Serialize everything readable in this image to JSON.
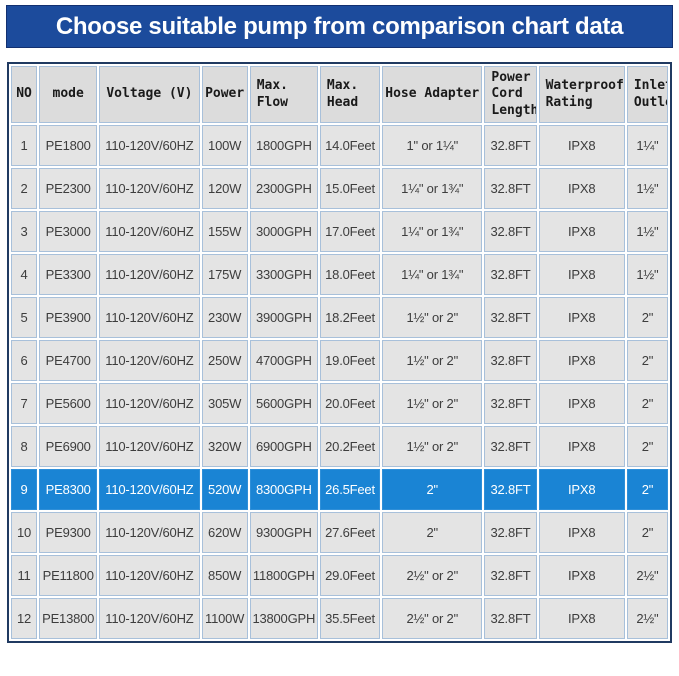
{
  "banner": {
    "bg_color": "#1c4b9c",
    "text_color": "#ffffff"
  },
  "colors": {
    "highlight_bg": "#1a84d4",
    "header_cell_bg": "#dcdcdc",
    "data_cell_bg": "#e4e4e4",
    "grid_line": "#a8c0da",
    "outer_border": "#203a61"
  },
  "chart_data": {
    "type": "table",
    "title": "Choose suitable pump from comparison chart data",
    "columns": [
      "NO",
      "mode",
      "Voltage (V)",
      "Power",
      "Max.\nFlow",
      "Max.\nHead",
      "Hose Adapter",
      "Power\nCord\nLength",
      "Waterproof\nRating",
      "Inlet/\nOutlet"
    ],
    "column_keys": [
      "no",
      "mode",
      "voltage",
      "power",
      "max-flow",
      "max-head",
      "hose-adapter",
      "power-cord-length",
      "waterproof-rating",
      "inlet-outlet"
    ],
    "highlighted_row_no": "9",
    "rows": [
      [
        "1",
        "PE1800",
        "110-120V/60HZ",
        "100W",
        "1800GPH",
        "14.0Feet",
        "1\" or 1¼\"",
        "32.8FT",
        "IPX8",
        "1¼\""
      ],
      [
        "2",
        "PE2300",
        "110-120V/60HZ",
        "120W",
        "2300GPH",
        "15.0Feet",
        "1¼\" or 1¾\"",
        "32.8FT",
        "IPX8",
        "1½\""
      ],
      [
        "3",
        "PE3000",
        "110-120V/60HZ",
        "155W",
        "3000GPH",
        "17.0Feet",
        "1¼\" or 1¾\"",
        "32.8FT",
        "IPX8",
        "1½\""
      ],
      [
        "4",
        "PE3300",
        "110-120V/60HZ",
        "175W",
        "3300GPH",
        "18.0Feet",
        "1¼\" or 1¾\"",
        "32.8FT",
        "IPX8",
        "1½\""
      ],
      [
        "5",
        "PE3900",
        "110-120V/60HZ",
        "230W",
        "3900GPH",
        "18.2Feet",
        "1½\" or 2\"",
        "32.8FT",
        "IPX8",
        "2\""
      ],
      [
        "6",
        "PE4700",
        "110-120V/60HZ",
        "250W",
        "4700GPH",
        "19.0Feet",
        "1½\" or 2\"",
        "32.8FT",
        "IPX8",
        "2\""
      ],
      [
        "7",
        "PE5600",
        "110-120V/60HZ",
        "305W",
        "5600GPH",
        "20.0Feet",
        "1½\" or 2\"",
        "32.8FT",
        "IPX8",
        "2\""
      ],
      [
        "8",
        "PE6900",
        "110-120V/60HZ",
        "320W",
        "6900GPH",
        "20.2Feet",
        "1½\" or 2\"",
        "32.8FT",
        "IPX8",
        "2\""
      ],
      [
        "9",
        "PE8300",
        "110-120V/60HZ",
        "520W",
        "8300GPH",
        "26.5Feet",
        "2\"",
        "32.8FT",
        "IPX8",
        "2\""
      ],
      [
        "10",
        "PE9300",
        "110-120V/60HZ",
        "620W",
        "9300GPH",
        "27.6Feet",
        "2\"",
        "32.8FT",
        "IPX8",
        "2\""
      ],
      [
        "11",
        "PE11800",
        "110-120V/60HZ",
        "850W",
        "11800GPH",
        "29.0Feet",
        "2½\" or 2\"",
        "32.8FT",
        "IPX8",
        "2½\""
      ],
      [
        "12",
        "PE13800",
        "110-120V/60HZ",
        "1100W",
        "13800GPH",
        "35.5Feet",
        "2½\" or 2\"",
        "32.8FT",
        "IPX8",
        "2½\""
      ]
    ]
  }
}
